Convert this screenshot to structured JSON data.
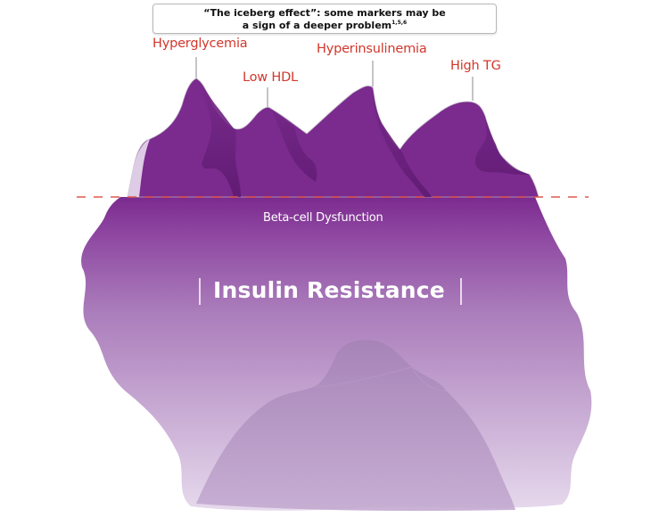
{
  "callout": {
    "line1": "“The iceberg effect”: some markers may be",
    "line2": "a sign of a deeper problem",
    "refs": "1,5,6"
  },
  "markers": {
    "hyperglycemia": "Hyperglycemia",
    "low_hdl": "Low HDL",
    "hyperinsulinemia": "Hyperinsulinemia",
    "high_tg": "High TG"
  },
  "below": {
    "beta_cell": "Beta-cell Dysfunction",
    "insulin_resistance": "Insulin Resistance"
  },
  "colors": {
    "marker_text": "#d2372c",
    "iceberg_purple": "#7b2a8e",
    "waterline": "#e0584a"
  }
}
